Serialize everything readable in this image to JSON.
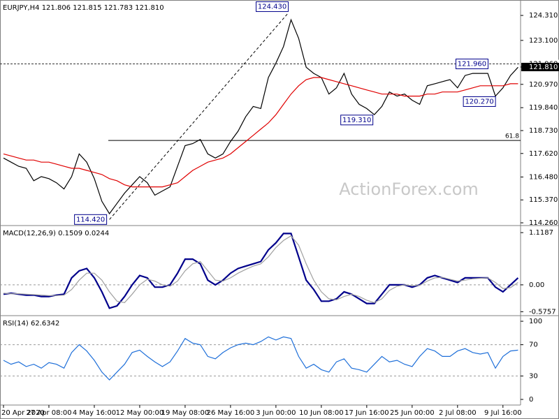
{
  "chart_data": [
    {
      "type": "line",
      "title": "EURJPY,H4  121.806 121.815 121.783 121.810",
      "watermark": "ActionForex.com",
      "series": [
        {
          "color": "#000000",
          "values": [
            117.4,
            117.2,
            117.0,
            116.9,
            116.3,
            116.5,
            116.4,
            116.2,
            115.9,
            116.5,
            117.6,
            117.2,
            116.4,
            115.3,
            114.7,
            115.2,
            115.7,
            116.1,
            116.5,
            116.2,
            115.6,
            115.8,
            116.0,
            117.0,
            118.0,
            118.1,
            118.3,
            117.6,
            117.4,
            117.6,
            118.2,
            118.7,
            119.4,
            119.9,
            119.8,
            121.3,
            122.0,
            122.8,
            124.1,
            123.2,
            121.8,
            121.5,
            121.3,
            120.5,
            120.8,
            121.5,
            120.5,
            120.0,
            119.8,
            119.5,
            119.9,
            120.6,
            120.4,
            120.5,
            120.2,
            120.0,
            120.9,
            121.0,
            121.1,
            121.2,
            120.8,
            121.4,
            121.5,
            121.5,
            121.5,
            120.4,
            120.8,
            121.4,
            121.8
          ]
        },
        {
          "color": "#e00000",
          "values": [
            117.6,
            117.5,
            117.4,
            117.3,
            117.3,
            117.2,
            117.2,
            117.1,
            117.0,
            116.9,
            116.9,
            116.8,
            116.7,
            116.6,
            116.4,
            116.3,
            116.1,
            116.0,
            116.0,
            116.0,
            116.0,
            116.0,
            116.1,
            116.2,
            116.5,
            116.8,
            117.0,
            117.2,
            117.3,
            117.4,
            117.6,
            117.9,
            118.2,
            118.5,
            118.8,
            119.1,
            119.5,
            120.0,
            120.5,
            120.9,
            121.2,
            121.3,
            121.3,
            121.2,
            121.1,
            121.0,
            120.9,
            120.8,
            120.7,
            120.6,
            120.5,
            120.5,
            120.5,
            120.4,
            120.4,
            120.4,
            120.5,
            120.5,
            120.6,
            120.6,
            120.6,
            120.7,
            120.8,
            120.9,
            120.9,
            120.9,
            120.9,
            121.0,
            121.0
          ]
        }
      ],
      "ylim": [
        114.16,
        124.99
      ],
      "yticks": [
        {
          "value": 124.31,
          "label": "124.310"
        },
        {
          "value": 123.1,
          "label": "123.100"
        },
        {
          "value": 121.81,
          "label": "121.810"
        },
        {
          "value": 120.97,
          "label": "120.970"
        },
        {
          "value": 119.84,
          "label": "119.840"
        },
        {
          "value": 118.73,
          "label": "118.730"
        },
        {
          "value": 117.62,
          "label": "117.620"
        },
        {
          "value": 116.48,
          "label": "116.480"
        },
        {
          "value": 115.37,
          "label": "115.370"
        },
        {
          "value": 114.26,
          "label": "114.260"
        }
      ],
      "annotations": [
        {
          "label": "124.430",
          "value": 124.43,
          "index": 38
        },
        {
          "label": "114.420",
          "value": 114.42,
          "index": 14
        },
        {
          "label": "119.310",
          "value": 119.31,
          "index": 49
        },
        {
          "label": "121.960",
          "value": 121.96,
          "index": 62
        },
        {
          "label": "120.270",
          "value": 120.27,
          "index": 64
        }
      ],
      "price_tags": [
        {
          "label": "121.960",
          "value": 121.96
        },
        {
          "label": "121.810",
          "value": 121.81
        }
      ],
      "fib": {
        "label": "61.8",
        "value": 118.25
      }
    },
    {
      "type": "line",
      "title": "MACD(12,26,9) 0.1509 0.0244",
      "series": [
        {
          "color": "#00008b",
          "values": [
            -0.2,
            -0.18,
            -0.2,
            -0.22,
            -0.22,
            -0.25,
            -0.25,
            -0.22,
            -0.2,
            0.15,
            0.3,
            0.35,
            0.15,
            -0.15,
            -0.5,
            -0.45,
            -0.25,
            0.0,
            0.2,
            0.15,
            -0.05,
            -0.05,
            0.0,
            0.25,
            0.55,
            0.55,
            0.45,
            0.1,
            0.0,
            0.1,
            0.25,
            0.35,
            0.4,
            0.45,
            0.5,
            0.75,
            0.9,
            1.1,
            1.1,
            0.6,
            0.1,
            -0.1,
            -0.35,
            -0.35,
            -0.3,
            -0.15,
            -0.2,
            -0.3,
            -0.4,
            -0.4,
            -0.2,
            0.0,
            0.0,
            0.0,
            -0.05,
            0.0,
            0.15,
            0.2,
            0.15,
            0.1,
            0.05,
            0.15,
            0.15,
            0.15,
            0.15,
            -0.05,
            -0.15,
            0.0,
            0.15
          ]
        },
        {
          "color": "#a0a0a0",
          "values": [
            -0.18,
            -0.19,
            -0.19,
            -0.2,
            -0.21,
            -0.22,
            -0.23,
            -0.23,
            -0.22,
            -0.1,
            0.1,
            0.25,
            0.25,
            0.1,
            -0.15,
            -0.35,
            -0.38,
            -0.2,
            0.0,
            0.12,
            0.08,
            0.0,
            -0.03,
            0.08,
            0.3,
            0.45,
            0.5,
            0.3,
            0.1,
            0.08,
            0.15,
            0.25,
            0.33,
            0.4,
            0.45,
            0.6,
            0.8,
            0.95,
            1.05,
            0.85,
            0.45,
            0.1,
            -0.15,
            -0.3,
            -0.32,
            -0.25,
            -0.2,
            -0.25,
            -0.33,
            -0.38,
            -0.3,
            -0.12,
            -0.03,
            0.0,
            -0.02,
            -0.01,
            0.08,
            0.15,
            0.16,
            0.12,
            0.08,
            0.1,
            0.13,
            0.14,
            0.15,
            0.05,
            -0.08,
            -0.06,
            0.05
          ]
        }
      ],
      "ylim": [
        -0.63,
        1.24
      ],
      "yticks": [
        1.1187,
        {
          "value": 0,
          "label": "0.00"
        },
        -0.5757
      ],
      "dashed_ticks": [
        1
      ]
    },
    {
      "type": "line",
      "title": "RSI(14) 62.6342",
      "categories": [
        "20 Apr 2020",
        null,
        null,
        null,
        null,
        null,
        "27 Apr 08:00",
        null,
        null,
        null,
        null,
        null,
        "4 May 16:00",
        null,
        null,
        null,
        null,
        null,
        "12 May 00:00",
        null,
        null,
        null,
        null,
        null,
        "19 May 08:00",
        null,
        null,
        null,
        null,
        null,
        "26 May 16:00",
        null,
        null,
        null,
        null,
        null,
        "3 Jun 00:00",
        null,
        null,
        null,
        null,
        null,
        "10 Jun 08:00",
        null,
        null,
        null,
        null,
        null,
        "17 Jun 16:00",
        null,
        null,
        null,
        null,
        null,
        "25 Jun 00:00",
        null,
        null,
        null,
        null,
        null,
        "2 Jul 08:00",
        null,
        null,
        null,
        null,
        null,
        "9 Jul 16:00",
        null,
        null
      ],
      "series": [
        {
          "color": "#1e6fd9",
          "values": [
            50,
            45,
            48,
            42,
            45,
            40,
            47,
            45,
            40,
            60,
            70,
            62,
            50,
            35,
            25,
            35,
            45,
            60,
            63,
            55,
            48,
            42,
            48,
            62,
            78,
            72,
            70,
            55,
            52,
            60,
            66,
            70,
            72,
            70,
            74,
            80,
            76,
            80,
            78,
            55,
            40,
            45,
            38,
            35,
            48,
            52,
            40,
            38,
            35,
            45,
            55,
            48,
            50,
            45,
            42,
            55,
            65,
            62,
            55,
            55,
            62,
            65,
            60,
            58,
            60,
            40,
            55,
            62,
            63
          ]
        }
      ],
      "ylim": [
        -7.2,
        105.4
      ],
      "yticks": [
        100,
        70,
        30,
        0
      ],
      "dashed_ticks": [
        1,
        2
      ]
    }
  ]
}
